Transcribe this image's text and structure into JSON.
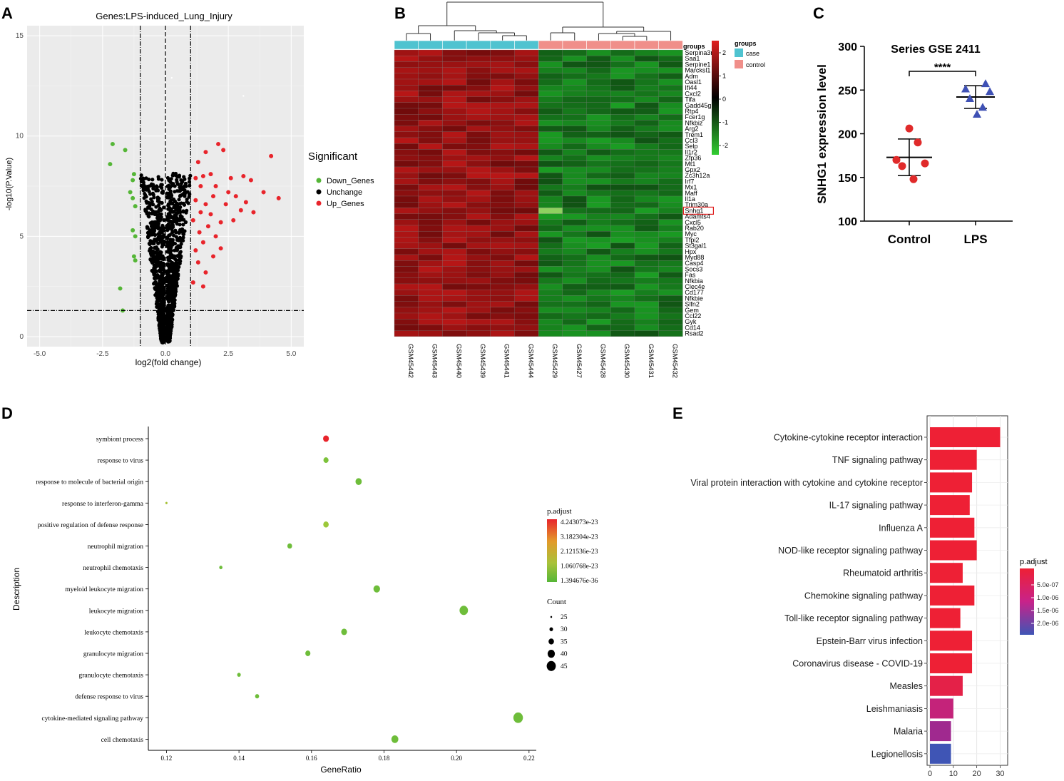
{
  "colors": {
    "up": "#e8242b",
    "down": "#55b637",
    "unchange": "#000000",
    "panel_bg": "#ebebeb",
    "case": "#4fc3d0",
    "control": "#f08f8a",
    "hm_high": "#e02020",
    "hm_mid": "#000000",
    "hm_low": "#32cd32",
    "blue_tri": "#3f51b5",
    "red_dot": "#e02a2a"
  },
  "chart_data": [
    {
      "panel": "A",
      "type": "scatter",
      "title": "Genes:LPS-induced_Lung_Injury",
      "xlabel": "log2(fold change)",
      "ylabel": "-log10(P.Value)",
      "xlim": [
        -5.5,
        5.5
      ],
      "ylim": [
        -0.5,
        15.5
      ],
      "xticks": [
        "-5.0",
        "-2.5",
        "0.0",
        "2.5",
        "5.0"
      ],
      "xtick_values": [
        -5,
        -2.5,
        0,
        2.5,
        5
      ],
      "yticks": [
        "0",
        "5",
        "10",
        "15"
      ],
      "ytick_values": [
        0,
        5,
        10,
        15
      ],
      "vlines": [
        -1,
        0,
        1
      ],
      "hline": 1.3,
      "legend_title": "Significant",
      "legend": [
        "Down_Genes",
        "Unchange",
        "Up_Genes"
      ],
      "down_points": [
        [
          -2.1,
          9.6
        ],
        [
          -1.6,
          9.3
        ],
        [
          -2.2,
          8.6
        ],
        [
          -1.3,
          7.8
        ],
        [
          -1.4,
          7.2
        ],
        [
          -1.3,
          6.9
        ],
        [
          -1.2,
          6.5
        ],
        [
          -1.3,
          5.3
        ],
        [
          -1.2,
          5.0
        ],
        [
          -1.25,
          4.0
        ],
        [
          -1.2,
          3.8
        ],
        [
          -1.8,
          2.4
        ],
        [
          -1.7,
          1.3
        ],
        [
          -1.25,
          8.1
        ]
      ],
      "up_points": [
        [
          2.1,
          9.6
        ],
        [
          2.3,
          9.3
        ],
        [
          1.6,
          9.2
        ],
        [
          1.3,
          8.7
        ],
        [
          4.2,
          9.0
        ],
        [
          1.5,
          8.0
        ],
        [
          2.6,
          7.9
        ],
        [
          3.1,
          8.0
        ],
        [
          3.4,
          7.8
        ],
        [
          3.9,
          7.2
        ],
        [
          4.5,
          6.9
        ],
        [
          1.4,
          7.5
        ],
        [
          1.2,
          6.8
        ],
        [
          1.8,
          6.1
        ],
        [
          2.4,
          6.6
        ],
        [
          3.2,
          6.7
        ],
        [
          3.0,
          6.3
        ],
        [
          1.7,
          5.5
        ],
        [
          2.0,
          5.0
        ],
        [
          1.5,
          4.7
        ],
        [
          1.2,
          4.3
        ],
        [
          2.2,
          4.4
        ],
        [
          1.3,
          3.7
        ],
        [
          1.6,
          3.2
        ],
        [
          1.1,
          2.7
        ],
        [
          1.5,
          2.5
        ],
        [
          1.9,
          7.0
        ],
        [
          2.7,
          5.8
        ],
        [
          1.1,
          5.8
        ],
        [
          1.4,
          6.2
        ],
        [
          2.5,
          7.2
        ],
        [
          3.5,
          6.2
        ],
        [
          1.8,
          8.1
        ],
        [
          2.0,
          7.5
        ],
        [
          1.2,
          7.9
        ],
        [
          1.35,
          5.2
        ],
        [
          2.2,
          5.7
        ],
        [
          1.9,
          4.0
        ],
        [
          2.8,
          7.0
        ],
        [
          1.6,
          6.6
        ]
      ],
      "outliers_unchange": [
        [
          0.25,
          12.9
        ],
        [
          3.1,
          12.0
        ]
      ]
    },
    {
      "panel": "B",
      "type": "heatmap",
      "legend_scale_title": "groups",
      "colorbar_ticks": [
        "2",
        "1",
        "0",
        "-1",
        "-2"
      ],
      "groups_legend_title": "groups",
      "groups_legend": [
        "case",
        "control"
      ],
      "samples": [
        "GSM45442",
        "GSM45443",
        "GSM45440",
        "GSM45439",
        "GSM45441",
        "GSM45444",
        "GSM45429",
        "GSM45427",
        "GSM45428",
        "GSM45430",
        "GSM45431",
        "GSM45432"
      ],
      "sample_groups": [
        "case",
        "case",
        "case",
        "case",
        "case",
        "case",
        "control",
        "control",
        "control",
        "control",
        "control",
        "control"
      ],
      "genes": [
        "Serpina3n",
        "Saa1",
        "Serpine1",
        "Marcksl1",
        "Adm",
        "Oasl1",
        "Ifi44",
        "Cxcl2",
        "Tifa",
        "Gadd45g",
        "Rtp4",
        "Fcer1g",
        "Nfkbiz",
        "Arg2",
        "Trem1",
        "Ccl3",
        "Selp",
        "Il1r2",
        "Zfp36",
        "Mt1",
        "Gpx2",
        "Zc3h12a",
        "Irf7",
        "Mx1",
        "Maff",
        "Il1a",
        "Trim30a",
        "Snhg1",
        "Adamts4",
        "Cxcl5",
        "Rab20",
        "Myc",
        "Tfpi2",
        "St3gal1",
        "Hpx",
        "Myd88",
        "Casp4",
        "Socs3",
        "Fas",
        "Nfkbia",
        "Clec4e",
        "Cd177",
        "Nfkbie",
        "Slfn2",
        "Gem",
        "Ccl22",
        "Gyk",
        "Cd14",
        "Rsad2"
      ],
      "highlight_gene": "Snhg1"
    },
    {
      "panel": "C",
      "type": "scatter",
      "title": "Series GSE 2411",
      "ylabel": "SNHG1 expression level",
      "categories": [
        "Control",
        "LPS"
      ],
      "ylim": [
        100,
        300
      ],
      "yticks": [
        "100",
        "150",
        "200",
        "250",
        "300"
      ],
      "ytick_values": [
        100,
        150,
        200,
        250,
        300
      ],
      "series": [
        {
          "name": "Control",
          "values": [
            206,
            190,
            170,
            166,
            163,
            148
          ],
          "mean": 173,
          "sd_upper": 194,
          "sd_lower": 152
        },
        {
          "name": "LPS",
          "values": [
            257,
            251,
            248,
            240,
            230,
            222
          ],
          "mean": 242,
          "sd_upper": 255,
          "sd_lower": 229
        }
      ],
      "significance": "****"
    },
    {
      "panel": "D",
      "type": "scatter",
      "xlabel": "GeneRatio",
      "ylabel": "Description",
      "xlim": [
        0.115,
        0.222
      ],
      "xticks": [
        "0.12",
        "0.14",
        "0.16",
        "0.18",
        "0.20",
        "0.22"
      ],
      "xtick_values": [
        0.12,
        0.14,
        0.16,
        0.18,
        0.2,
        0.22
      ],
      "terms": [
        "symbiont process",
        "response to virus",
        "response to molecule of bacterial origin",
        "response to interferon-gamma",
        "positive regulation of defense response",
        "neutrophil migration",
        "neutrophil chemotaxis",
        "myeloid leukocyte migration",
        "leukocyte migration",
        "leukocyte chemotaxis",
        "granulocyte migration",
        "granulocyte chemotaxis",
        "defense response to virus",
        "cytokine-mediated signaling pathway",
        "cell chemotaxis"
      ],
      "gene_ratio": [
        0.164,
        0.164,
        0.173,
        0.12,
        0.164,
        0.154,
        0.135,
        0.178,
        0.202,
        0.169,
        0.159,
        0.14,
        0.145,
        0.217,
        0.183
      ],
      "count": [
        35,
        33,
        36,
        25,
        34,
        32,
        28,
        37,
        42,
        35,
        33,
        29,
        30,
        45,
        38
      ],
      "p_adjust_level": [
        1.0,
        0.1,
        0.05,
        0.5,
        0.3,
        0.05,
        0.05,
        0.05,
        0.05,
        0.05,
        0.05,
        0.05,
        0.05,
        0.05,
        0.05
      ],
      "colorbar_title": "p.adjust",
      "colorbar_labels": [
        "4.243073e-23",
        "3.182304e-23",
        "2.121536e-23",
        "1.060768e-23",
        "1.394676e-36"
      ],
      "size_legend_title": "Count",
      "size_legend": [
        "25",
        "30",
        "35",
        "40",
        "45"
      ]
    },
    {
      "panel": "E",
      "type": "bar",
      "orientation": "horizontal",
      "categories": [
        "Cytokine-cytokine receptor interaction",
        "TNF signaling pathway",
        "Viral protein interaction with cytokine and cytokine receptor",
        "IL-17 signaling pathway",
        "Influenza A",
        "NOD-like receptor signaling pathway",
        "Rheumatoid arthritis",
        "Chemokine signaling pathway",
        "Toll-like receptor signaling pathway",
        "Epstein-Barr virus infection",
        "Coronavirus disease - COVID-19",
        "Measles",
        "Leishmaniasis",
        "Malaria",
        "Legionellosis"
      ],
      "values": [
        30,
        20,
        18,
        17,
        19,
        20,
        14,
        19,
        13,
        18,
        18,
        14,
        10,
        9,
        9
      ],
      "p_adjust_level": [
        0,
        0,
        0,
        0,
        0,
        0,
        0,
        0,
        0,
        0,
        0,
        0.08,
        0.35,
        0.55,
        1.0
      ],
      "xlim": [
        0,
        32
      ],
      "xticks": [
        "0",
        "10",
        "20",
        "30"
      ],
      "xtick_values": [
        0,
        10,
        20,
        30
      ],
      "colorbar_title": "p.adjust",
      "colorbar_labels": [
        "5.0e-07",
        "1.0e-06",
        "1.5e-06",
        "2.0e-06"
      ]
    }
  ],
  "panels": {
    "a": "A",
    "b": "B",
    "c": "C",
    "d": "D",
    "e": "E"
  }
}
